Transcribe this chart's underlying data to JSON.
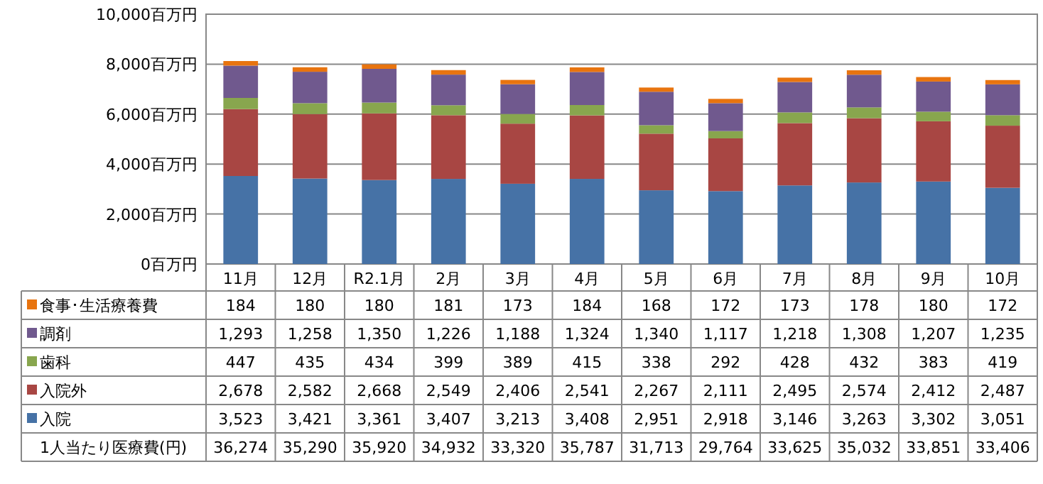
{
  "chart_data": {
    "type": "bar",
    "stacked": true,
    "legend": "bottom",
    "grid": "y",
    "categories": [
      "11月",
      "12月",
      "R2.1月",
      "2月",
      "3月",
      "4月",
      "5月",
      "6月",
      "7月",
      "8月",
      "9月",
      "10月"
    ],
    "ylim": [
      0,
      10000
    ],
    "yticks": [
      {
        "value": 0,
        "label": "0百万円"
      },
      {
        "value": 2000,
        "label": "2,000百万円"
      },
      {
        "value": 4000,
        "label": "4,000百万円"
      },
      {
        "value": 6000,
        "label": "6,000百万円"
      },
      {
        "value": 8000,
        "label": "8,000百万円"
      },
      {
        "value": 10000,
        "label": "10,000百万円"
      }
    ],
    "series": [
      {
        "name": "入院",
        "color": "#4672a6",
        "values": [
          3523,
          3421,
          3361,
          3407,
          3213,
          3408,
          2951,
          2918,
          3146,
          3263,
          3302,
          3051
        ],
        "value_labels": [
          "3,523",
          "3,421",
          "3,361",
          "3,407",
          "3,213",
          "3,408",
          "2,951",
          "2,918",
          "3,146",
          "3,263",
          "3,302",
          "3,051"
        ]
      },
      {
        "name": "入院外",
        "color": "#a84643",
        "values": [
          2678,
          2582,
          2668,
          2549,
          2406,
          2541,
          2267,
          2111,
          2495,
          2574,
          2412,
          2487
        ],
        "value_labels": [
          "2,678",
          "2,582",
          "2,668",
          "2,549",
          "2,406",
          "2,541",
          "2,267",
          "2,111",
          "2,495",
          "2,574",
          "2,412",
          "2,487"
        ]
      },
      {
        "name": "歯科",
        "color": "#88a64e",
        "values": [
          447,
          435,
          434,
          399,
          389,
          415,
          338,
          292,
          428,
          432,
          383,
          419
        ],
        "value_labels": [
          "447",
          "435",
          "434",
          "399",
          "389",
          "415",
          "338",
          "292",
          "428",
          "432",
          "383",
          "419"
        ]
      },
      {
        "name": "調剤",
        "color": "#70598e",
        "values": [
          1293,
          1258,
          1350,
          1226,
          1188,
          1324,
          1340,
          1117,
          1218,
          1308,
          1207,
          1235
        ],
        "value_labels": [
          "1,293",
          "1,258",
          "1,350",
          "1,226",
          "1,188",
          "1,324",
          "1,340",
          "1,117",
          "1,218",
          "1,308",
          "1,207",
          "1,235"
        ]
      },
      {
        "name": "食事･生活療養費",
        "color": "#e8740f",
        "values": [
          184,
          180,
          180,
          181,
          173,
          184,
          168,
          172,
          173,
          178,
          180,
          172
        ],
        "value_labels": [
          "184",
          "180",
          "180",
          "181",
          "173",
          "184",
          "168",
          "172",
          "173",
          "178",
          "180",
          "172"
        ]
      }
    ],
    "annotations": [
      "1人当たり医療費(円)",
      "36,274",
      "35,290",
      "35,920",
      "34,932",
      "33,320",
      "35,787",
      "31,713",
      "29,764",
      "33,625",
      "35,032",
      "33,851",
      "33,406"
    ]
  }
}
